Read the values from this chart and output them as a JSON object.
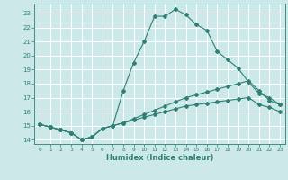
{
  "xlabel": "Humidex (Indice chaleur)",
  "ylabel": "",
  "background_color": "#cce8e8",
  "grid_color": "#ffffff",
  "line_color": "#2e7f74",
  "xlim": [
    -0.5,
    23.5
  ],
  "ylim": [
    13.7,
    23.7
  ],
  "yticks": [
    14,
    15,
    16,
    17,
    18,
    19,
    20,
    21,
    22,
    23
  ],
  "xticks": [
    0,
    1,
    2,
    3,
    4,
    5,
    6,
    7,
    8,
    9,
    10,
    11,
    12,
    13,
    14,
    15,
    16,
    17,
    18,
    19,
    20,
    21,
    22,
    23
  ],
  "series1_x": [
    0,
    1,
    2,
    3,
    4,
    5,
    6,
    7,
    8,
    9,
    10,
    11,
    12,
    13,
    14,
    15,
    16,
    17,
    18,
    19,
    20,
    21,
    22,
    23
  ],
  "series1_y": [
    15.1,
    14.9,
    14.7,
    14.5,
    14.0,
    14.2,
    14.8,
    15.0,
    17.5,
    19.5,
    21.0,
    22.8,
    22.8,
    23.3,
    22.9,
    22.2,
    21.8,
    20.3,
    19.7,
    19.1,
    18.1,
    17.3,
    17.0,
    16.5
  ],
  "series2_x": [
    0,
    1,
    2,
    3,
    4,
    5,
    6,
    7,
    8,
    9,
    10,
    11,
    12,
    13,
    14,
    15,
    16,
    17,
    18,
    19,
    20,
    21,
    22,
    23
  ],
  "series2_y": [
    15.1,
    14.9,
    14.7,
    14.5,
    14.0,
    14.2,
    14.8,
    15.0,
    15.2,
    15.5,
    15.8,
    16.1,
    16.4,
    16.7,
    17.0,
    17.2,
    17.4,
    17.6,
    17.8,
    18.0,
    18.2,
    17.5,
    16.8,
    16.5
  ],
  "series3_x": [
    0,
    1,
    2,
    3,
    4,
    5,
    6,
    7,
    8,
    9,
    10,
    11,
    12,
    13,
    14,
    15,
    16,
    17,
    18,
    19,
    20,
    21,
    22,
    23
  ],
  "series3_y": [
    15.1,
    14.9,
    14.7,
    14.5,
    14.0,
    14.2,
    14.8,
    15.0,
    15.2,
    15.4,
    15.6,
    15.8,
    16.0,
    16.2,
    16.4,
    16.5,
    16.6,
    16.7,
    16.8,
    16.9,
    17.0,
    16.5,
    16.3,
    16.0
  ],
  "tick_fontsize": 5.5,
  "xlabel_fontsize": 6.0,
  "marker_size": 2.0
}
